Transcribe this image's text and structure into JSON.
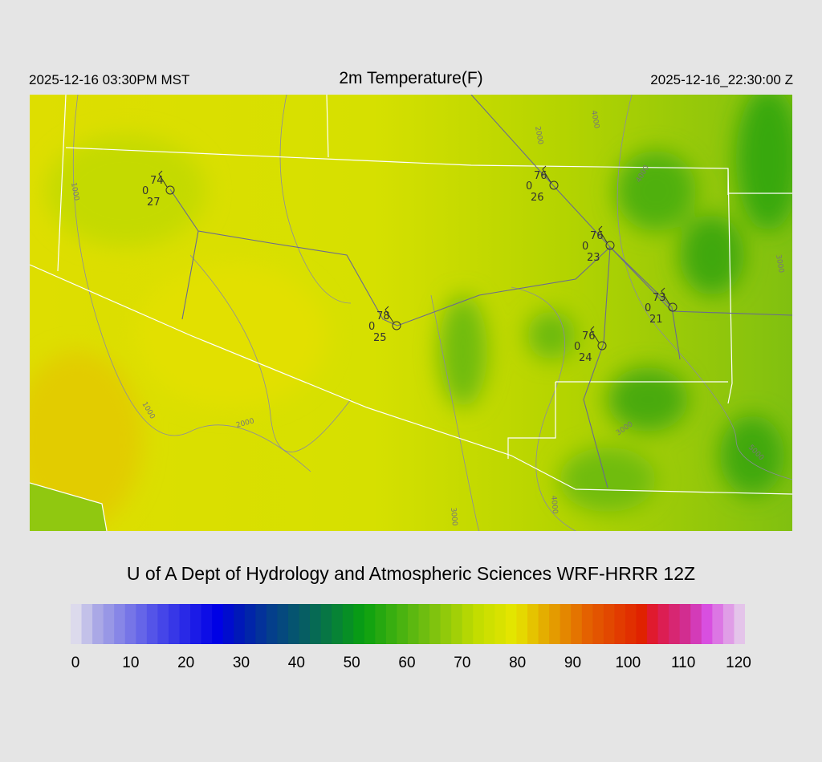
{
  "header": {
    "local_time": "2025-12-16 03:30PM MST",
    "title": "2m Temperature(F)",
    "utc_time": "2025-12-16_22:30:00 Z"
  },
  "credit": "U of A Dept of Hydrology and Atmospheric Sciences WRF-HRRR 12Z",
  "colorbar": {
    "ticks": [
      "0",
      "10",
      "20",
      "30",
      "40",
      "50",
      "60",
      "70",
      "80",
      "90",
      "100",
      "110",
      "120"
    ],
    "range": [
      0,
      120
    ],
    "colors": [
      [
        0,
        "#e8e6ee"
      ],
      [
        5,
        "#a8a6e6"
      ],
      [
        15,
        "#5050e8"
      ],
      [
        26,
        "#0000e6"
      ],
      [
        30,
        "#0018b8"
      ],
      [
        36,
        "#04408a"
      ],
      [
        42,
        "#066060"
      ],
      [
        52,
        "#08a010"
      ],
      [
        64,
        "#78c010"
      ],
      [
        72,
        "#c0dc00"
      ],
      [
        79,
        "#e6e600"
      ],
      [
        84,
        "#e4b000"
      ],
      [
        92,
        "#e46000"
      ],
      [
        102,
        "#e02000"
      ],
      [
        104,
        "#e0183c"
      ],
      [
        110,
        "#d0309a"
      ],
      [
        113,
        "#d84ae0"
      ],
      [
        120,
        "#e6d8ec"
      ]
    ]
  },
  "stations": [
    {
      "temp": "74",
      "mid": "0",
      "dew": "27"
    },
    {
      "temp": "76",
      "mid": "0",
      "dew": "26"
    },
    {
      "temp": "76",
      "mid": "0",
      "dew": "23"
    },
    {
      "temp": "78",
      "mid": "0",
      "dew": "25"
    },
    {
      "temp": "73",
      "mid": "0",
      "dew": "21"
    },
    {
      "temp": "76",
      "mid": "0",
      "dew": "24"
    }
  ],
  "contour_labels": [
    "1000",
    "1000",
    "2000",
    "2000",
    "3000",
    "3000",
    "4000",
    "4000",
    "4000",
    "5000",
    "3000"
  ]
}
